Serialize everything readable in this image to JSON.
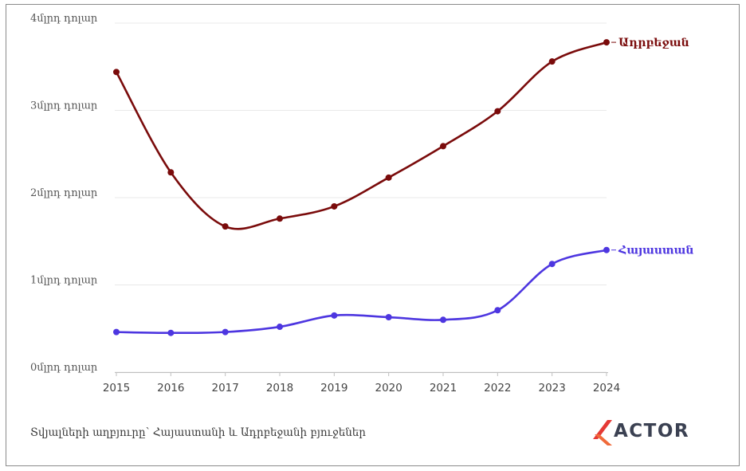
{
  "chart_data": {
    "type": "line",
    "x": [
      2015,
      2016,
      2017,
      2018,
      2019,
      2020,
      2021,
      2022,
      2023,
      2024
    ],
    "series": [
      {
        "name": "Ադրբեջան",
        "color": "#7a0b0b",
        "values": [
          3.44,
          2.29,
          1.67,
          1.76,
          1.9,
          2.23,
          2.59,
          2.99,
          3.56,
          3.78
        ]
      },
      {
        "name": "Հայաստան",
        "color": "#4d36e0",
        "values": [
          0.46,
          0.45,
          0.46,
          0.52,
          0.65,
          0.63,
          0.6,
          0.71,
          1.24,
          1.4
        ]
      }
    ],
    "yticks": [
      {
        "value": 0,
        "label": "0մլրդ դոլար"
      },
      {
        "value": 1,
        "label": "1մլրդ դոլար"
      },
      {
        "value": 2,
        "label": "2մլրդ դոլար"
      },
      {
        "value": 3,
        "label": "3մլրդ դոլար"
      },
      {
        "value": 4,
        "label": "4մլրդ դոլար"
      }
    ],
    "ylim": [
      0,
      4
    ],
    "xticks": [
      "2015",
      "2016",
      "2017",
      "2018",
      "2019",
      "2020",
      "2021",
      "2022",
      "2023",
      "2024"
    ],
    "grid": true,
    "legend": "series labels at line ends"
  },
  "source_text": "Տվյալների աղբյուրը՝ Հայաստանի և Ադրբեջանի բյուջեներ",
  "logo": {
    "text": "ACTOR",
    "accent_color": "#e53935"
  }
}
